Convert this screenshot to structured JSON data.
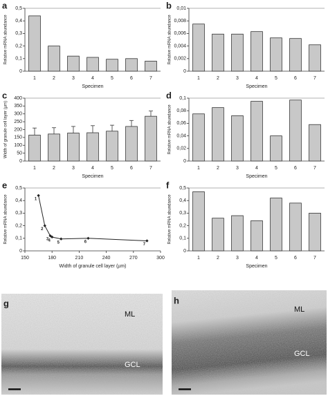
{
  "chart_data": [
    {
      "panel": "a",
      "type": "bar",
      "categories": [
        "1",
        "2",
        "3",
        "4",
        "5",
        "6",
        "7"
      ],
      "values": [
        0.44,
        0.2,
        0.12,
        0.11,
        0.095,
        0.1,
        0.08
      ],
      "color": "#c8c8c8",
      "ylim": [
        0,
        0.5
      ],
      "yticks": [
        0,
        {
          "value": 0.1,
          "label": "0,1"
        },
        {
          "value": 0.2,
          "label": "0,2"
        },
        {
          "value": 0.3,
          "label": "0,3"
        },
        {
          "value": 0.4,
          "label": "0,4"
        },
        {
          "value": 0.5,
          "label": "0,5"
        }
      ],
      "x_label": "Specimen",
      "y_label": "Relative mRNA abundance"
    },
    {
      "panel": "b",
      "type": "bar",
      "categories": [
        "1",
        "2",
        "3",
        "4",
        "5",
        "6",
        "7"
      ],
      "values": [
        0.0075,
        0.0059,
        0.0059,
        0.0063,
        0.0053,
        0.0052,
        0.0042
      ],
      "color": "#c8c8c8",
      "ylim": [
        0,
        0.01
      ],
      "yticks": [
        0,
        {
          "value": 0.002,
          "label": "0,002"
        },
        {
          "value": 0.004,
          "label": "0,004"
        },
        {
          "value": 0.006,
          "label": "0,006"
        },
        {
          "value": 0.008,
          "label": "0,008"
        },
        {
          "value": 0.01,
          "label": "0,01"
        }
      ],
      "x_label": "Specimen",
      "y_label": "Relative mRNA abundance"
    },
    {
      "panel": "c",
      "type": "bar",
      "categories": [
        "1",
        "2",
        "3",
        "4",
        "5",
        "6",
        "7"
      ],
      "values": [
        165,
        172,
        178,
        180,
        190,
        220,
        285
      ],
      "errors": [
        45,
        40,
        42,
        45,
        38,
        38,
        33
      ],
      "color": "#c8c8c8",
      "ylim": [
        0,
        400
      ],
      "yticks": [
        0,
        50,
        100,
        150,
        200,
        250,
        300,
        350,
        400
      ],
      "x_label": "Specimen",
      "y_label": "Width of granule cell layer (µm)"
    },
    {
      "panel": "d",
      "type": "bar",
      "categories": [
        "1",
        "2",
        "3",
        "4",
        "5",
        "6",
        "7"
      ],
      "values": [
        0.075,
        0.085,
        0.072,
        0.095,
        0.04,
        0.097,
        0.058
      ],
      "color": "#c8c8c8",
      "ylim": [
        0,
        0.1
      ],
      "yticks": [
        0,
        {
          "value": 0.02,
          "label": "0,02"
        },
        {
          "value": 0.04,
          "label": "0,04"
        },
        {
          "value": 0.06,
          "label": "0,06"
        },
        {
          "value": 0.08,
          "label": "0,08"
        },
        {
          "value": 0.1,
          "label": "0,1"
        }
      ],
      "x_label": "Specimen",
      "y_label": "Relative mRNA abundance"
    },
    {
      "panel": "e",
      "type": "line",
      "x": [
        165,
        172,
        178,
        180,
        190,
        220,
        285
      ],
      "y": [
        0.44,
        0.2,
        0.12,
        0.11,
        0.095,
        0.1,
        0.08
      ],
      "point_labels": [
        "1",
        "2",
        "3",
        "4",
        "5",
        "6",
        "7"
      ],
      "color": "#222222",
      "xlim": [
        150,
        300
      ],
      "xticks": [
        150,
        180,
        210,
        240,
        270,
        300
      ],
      "ylim": [
        0,
        0.5
      ],
      "yticks": [
        0,
        {
          "value": 0.1,
          "label": "0,1"
        },
        {
          "value": 0.2,
          "label": "0,2"
        },
        {
          "value": 0.3,
          "label": "0,3"
        },
        {
          "value": 0.4,
          "label": "0,4"
        },
        {
          "value": 0.5,
          "label": "0,5"
        }
      ],
      "x_label": "Width of granule cell layer (µm)",
      "y_label": "Relative mRNA abundance"
    },
    {
      "panel": "f",
      "type": "bar",
      "categories": [
        "1",
        "2",
        "3",
        "4",
        "5",
        "6",
        "7"
      ],
      "values": [
        0.47,
        0.26,
        0.28,
        0.24,
        0.42,
        0.38,
        0.3
      ],
      "color": "#c8c8c8",
      "ylim": [
        0,
        0.5
      ],
      "yticks": [
        0,
        {
          "value": 0.1,
          "label": "0,1"
        },
        {
          "value": 0.2,
          "label": "0,2"
        },
        {
          "value": 0.3,
          "label": "0,3"
        },
        {
          "value": 0.4,
          "label": "0,4"
        },
        {
          "value": 0.5,
          "label": "0,5"
        }
      ],
      "x_label": "Specimen",
      "y_label": "Relative mRNA abundance"
    }
  ],
  "images": [
    {
      "panel": "g",
      "top_label": "ML",
      "bottom_label": "GCL"
    },
    {
      "panel": "h",
      "top_label": "ML",
      "bottom_label": "GCL"
    }
  ]
}
